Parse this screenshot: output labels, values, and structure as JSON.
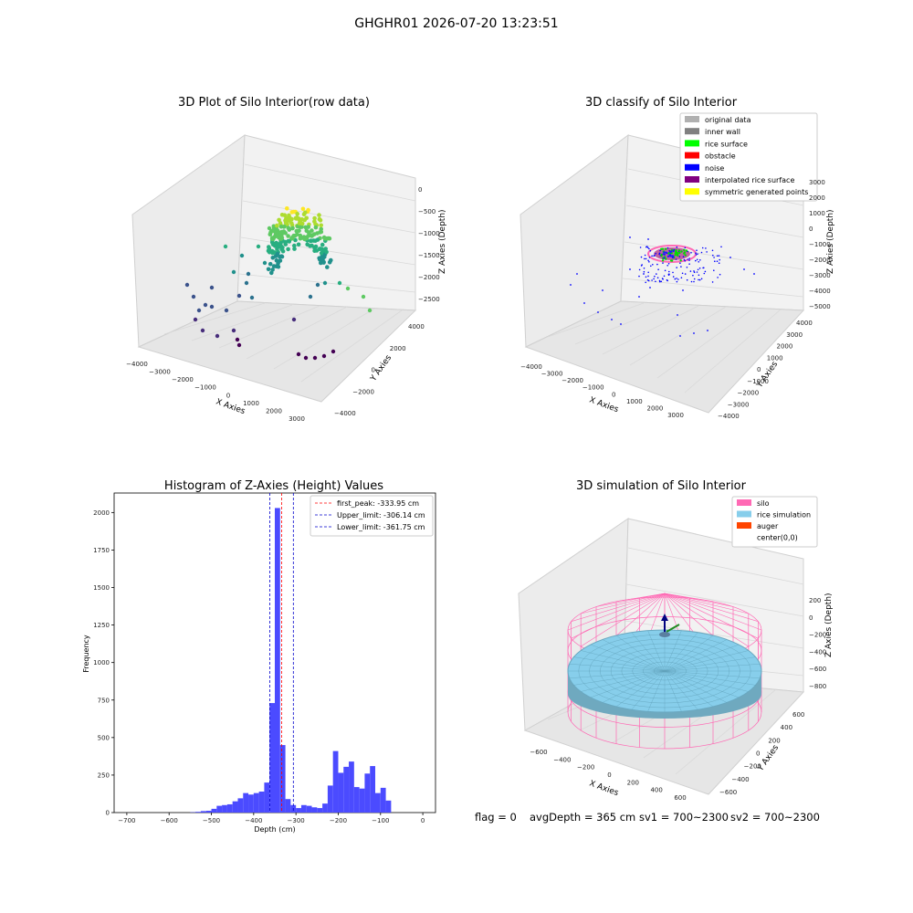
{
  "header": {
    "title": "GHGHR01 2026-07-20 13:23:51"
  },
  "colors": {
    "hist_bar": "#4b4bff",
    "peak_line": "#ff0000",
    "limit_line": "#0000cc",
    "pane": "#f2f2f2",
    "grid": "#d9d9d9",
    "silo": "#ff69b4",
    "rice": "#87ceeb",
    "auger": "#ff4500"
  },
  "panels": {
    "raw": {
      "title": "3D Plot of Silo Interior(row data)",
      "xlabel": "X Axies",
      "ylabel": "Y Axies",
      "zlabel": "Z Axies (Depth)",
      "xticks": [
        "−4000",
        "−3000",
        "−2000",
        "−1000",
        "0",
        "1000",
        "2000",
        "3000"
      ],
      "yticks": [
        "−4000",
        "−2000",
        "0",
        "2000",
        "4000"
      ],
      "zticks": [
        "0",
        "−500",
        "−1000",
        "−1500",
        "−2000",
        "−2500"
      ]
    },
    "classify": {
      "title": "3D classify of Silo Interior",
      "xlabel": "X Axies",
      "ylabel": "Y Axies",
      "zlabel": "Z Axies (Depth)",
      "xticks": [
        "−4000",
        "−3000",
        "−2000",
        "−1000",
        "0",
        "1000",
        "2000",
        "3000"
      ],
      "yticks": [
        "−4000",
        "−3000",
        "−2000",
        "−1000",
        "0",
        "1000",
        "2000",
        "3000",
        "4000"
      ],
      "zticks": [
        "3000",
        "2000",
        "1000",
        "0",
        "−1000",
        "−2000",
        "−3000",
        "−4000",
        "−5000"
      ],
      "legend": [
        {
          "label": "original data",
          "color": "#b0b0b0"
        },
        {
          "label": "inner wall",
          "color": "#808080"
        },
        {
          "label": "rice surface",
          "color": "#00ff00"
        },
        {
          "label": "obstacle",
          "color": "#ff0000"
        },
        {
          "label": "noise",
          "color": "#0000ff"
        },
        {
          "label": "interpolated rice surface",
          "color": "#800080"
        },
        {
          "label": "symmetric generated points",
          "color": "#ffff00"
        }
      ]
    },
    "sim": {
      "title": "3D simulation of Silo Interior",
      "xlabel": "X Axies",
      "ylabel": "Y Axies",
      "zlabel": "Z Axies (Depth)",
      "xticks": [
        "−600",
        "−400",
        "−200",
        "0",
        "200",
        "400",
        "600"
      ],
      "yticks": [
        "−600",
        "−400",
        "−200",
        "0",
        "200",
        "400",
        "600"
      ],
      "zticks": [
        "200",
        "0",
        "−200",
        "−400",
        "−600",
        "−800"
      ],
      "legend": [
        {
          "label": "silo",
          "color": "#ff69b4"
        },
        {
          "label": "rice simulation",
          "color": "#87ceeb"
        },
        {
          "label": "auger",
          "color": "#ff4500"
        },
        {
          "label": "center(0,0)",
          "color": ""
        }
      ]
    }
  },
  "chart_data": [
    {
      "type": "scatter",
      "title": "3D Plot of Silo Interior(row data)",
      "xlabel": "X Axies",
      "ylabel": "Y Axies",
      "zlabel": "Z Axies (Depth)",
      "xlim": [
        -4000,
        3500
      ],
      "ylim": [
        -4000,
        4500
      ],
      "zlim": [
        -2800,
        100
      ],
      "colormap": "viridis by depth"
    },
    {
      "type": "scatter",
      "title": "3D classify of Silo Interior",
      "xlabel": "X Axies",
      "ylabel": "Y Axies",
      "zlabel": "Z Axies (Depth)",
      "series": [
        {
          "name": "original data"
        },
        {
          "name": "inner wall"
        },
        {
          "name": "rice surface"
        },
        {
          "name": "obstacle"
        },
        {
          "name": "noise"
        },
        {
          "name": "interpolated rice surface"
        },
        {
          "name": "symmetric generated points"
        }
      ],
      "legend_position": "top-right"
    },
    {
      "type": "bar",
      "title": "Histogram of Z-Axies (Height) Values",
      "xlabel": "Depth (cm)",
      "ylabel": "Frequency",
      "xlim": [
        -730,
        30
      ],
      "ylim": [
        0,
        2130
      ],
      "xticks": [
        -700,
        -600,
        -500,
        -400,
        -300,
        -200,
        -100,
        0
      ],
      "yticks": [
        0,
        250,
        500,
        750,
        1000,
        1250,
        1500,
        1750,
        2000
      ],
      "bin_width": 12.5,
      "bins": [
        {
          "x": -550,
          "v": 2
        },
        {
          "x": -537.5,
          "v": 5
        },
        {
          "x": -525,
          "v": 10
        },
        {
          "x": -512.5,
          "v": 12
        },
        {
          "x": -500,
          "v": 25
        },
        {
          "x": -487.5,
          "v": 45
        },
        {
          "x": -475,
          "v": 50
        },
        {
          "x": -462.5,
          "v": 55
        },
        {
          "x": -450,
          "v": 75
        },
        {
          "x": -437.5,
          "v": 95
        },
        {
          "x": -425,
          "v": 130
        },
        {
          "x": -412.5,
          "v": 120
        },
        {
          "x": -400,
          "v": 130
        },
        {
          "x": -387.5,
          "v": 140
        },
        {
          "x": -375,
          "v": 200
        },
        {
          "x": -362.5,
          "v": 730
        },
        {
          "x": -350,
          "v": 2030
        },
        {
          "x": -337.5,
          "v": 450
        },
        {
          "x": -325,
          "v": 90
        },
        {
          "x": -312.5,
          "v": 50
        },
        {
          "x": -300,
          "v": 30
        },
        {
          "x": -287.5,
          "v": 50
        },
        {
          "x": -275,
          "v": 45
        },
        {
          "x": -262.5,
          "v": 35
        },
        {
          "x": -250,
          "v": 30
        },
        {
          "x": -237.5,
          "v": 60
        },
        {
          "x": -225,
          "v": 180
        },
        {
          "x": -212.5,
          "v": 410
        },
        {
          "x": -200,
          "v": 265
        },
        {
          "x": -187.5,
          "v": 305
        },
        {
          "x": -175,
          "v": 340
        },
        {
          "x": -162.5,
          "v": 170
        },
        {
          "x": -150,
          "v": 160
        },
        {
          "x": -137.5,
          "v": 260
        },
        {
          "x": -125,
          "v": 310
        },
        {
          "x": -112.5,
          "v": 130
        },
        {
          "x": -100,
          "v": 165
        },
        {
          "x": -87.5,
          "v": 80
        }
      ],
      "lines": [
        {
          "label": "first_peak: -333.95 cm",
          "value": -333.95,
          "color": "#ff0000"
        },
        {
          "label": "Upper_limit: -306.14 cm",
          "value": -306.14,
          "color": "#0000cc"
        },
        {
          "label": "Lower_limit: -361.75 cm",
          "value": -361.75,
          "color": "#0000cc"
        }
      ],
      "legend_position": "top-right"
    },
    {
      "type": "scatter",
      "title": "3D simulation of Silo Interior",
      "xlabel": "X Axies",
      "ylabel": "Y Axies",
      "zlabel": "Z Axies (Depth)",
      "series": [
        {
          "name": "silo"
        },
        {
          "name": "rice simulation"
        },
        {
          "name": "auger"
        },
        {
          "name": "center(0,0)"
        }
      ],
      "legend_position": "top-right"
    }
  ],
  "footer": {
    "flag": "flag = 0",
    "avg": "avgDepth = 365 cm",
    "sv1": "sv1 = 700~2300",
    "sv2": "sv2 = 700~2300"
  }
}
